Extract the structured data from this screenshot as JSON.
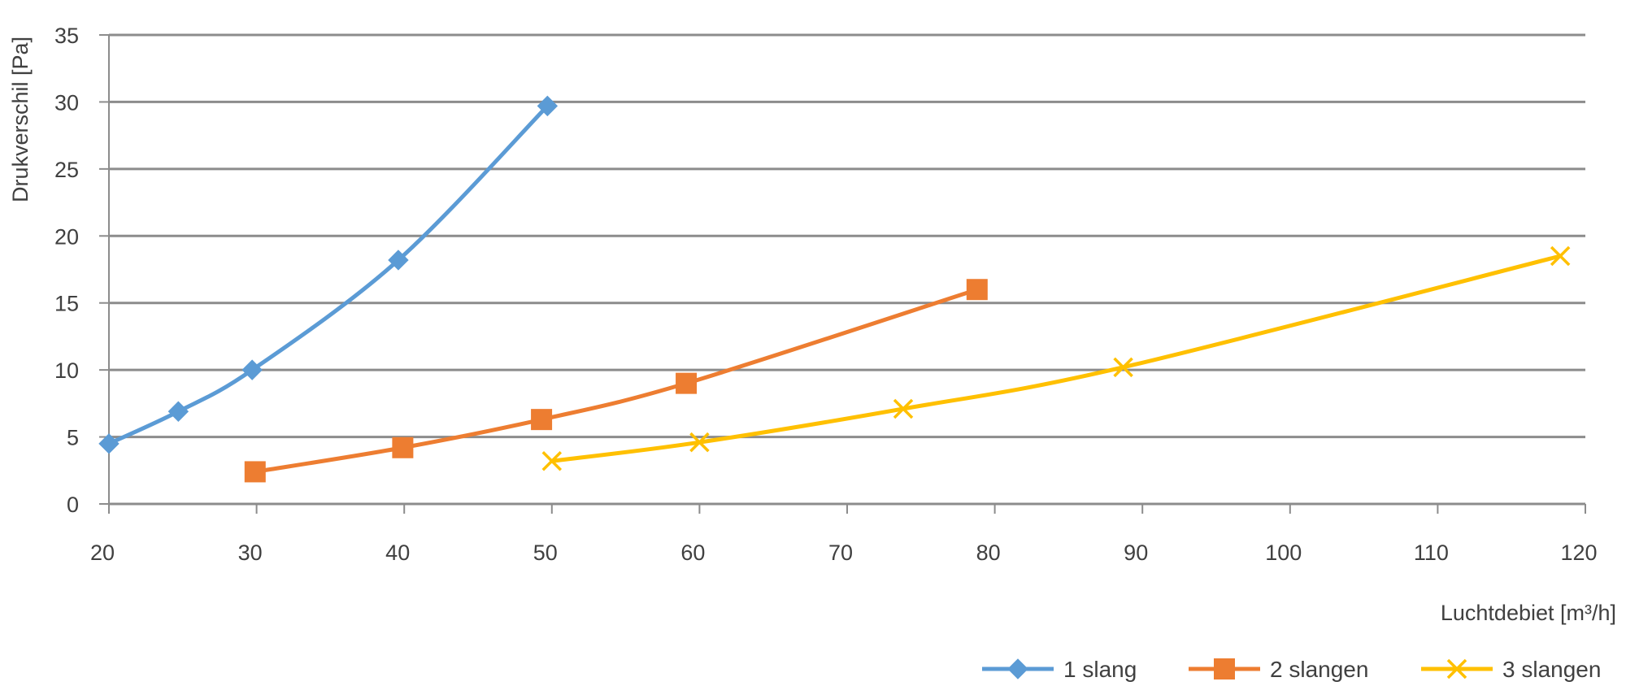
{
  "chart_data": {
    "type": "line",
    "xlabel": "Luchtdebiet [m³/h]",
    "ylabel": "Drukverschil [Pa]",
    "xlim": [
      20,
      120
    ],
    "ylim": [
      0,
      35
    ],
    "xticks": [
      "20",
      "30",
      "40",
      "50",
      "60",
      "70",
      "80",
      "90",
      "100",
      "110",
      "120"
    ],
    "yticks": [
      "0",
      "5",
      "10",
      "15",
      "20",
      "25",
      "30",
      "35"
    ],
    "grid": "horizontal",
    "legend_position": "bottom-right",
    "series": [
      {
        "name": "1 slang",
        "color": "#5B9BD5",
        "marker": "diamond",
        "x": [
          20,
          24.7,
          29.7,
          39.6,
          49.7
        ],
        "y": [
          4.5,
          6.9,
          10.0,
          18.2,
          29.7
        ]
      },
      {
        "name": "2 slangen",
        "color": "#ED7D31",
        "marker": "square",
        "x": [
          29.9,
          39.9,
          49.3,
          59.1,
          78.8
        ],
        "y": [
          2.4,
          4.2,
          6.3,
          9.0,
          16.0
        ]
      },
      {
        "name": "3 slangen",
        "color": "#FFC000",
        "marker": "x",
        "x": [
          50.0,
          60.0,
          73.8,
          88.7,
          118.3
        ],
        "y": [
          3.2,
          4.6,
          7.1,
          10.2,
          18.5
        ]
      }
    ]
  }
}
